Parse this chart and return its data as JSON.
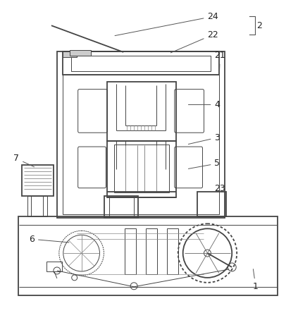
{
  "bg_color": "#ffffff",
  "line_color": "#444444",
  "label_color": "#222222",
  "figsize": [
    4.23,
    4.44
  ],
  "dpi": 100,
  "lw_main": 1.3,
  "lw_thin": 0.7,
  "lw_thick": 1.8
}
